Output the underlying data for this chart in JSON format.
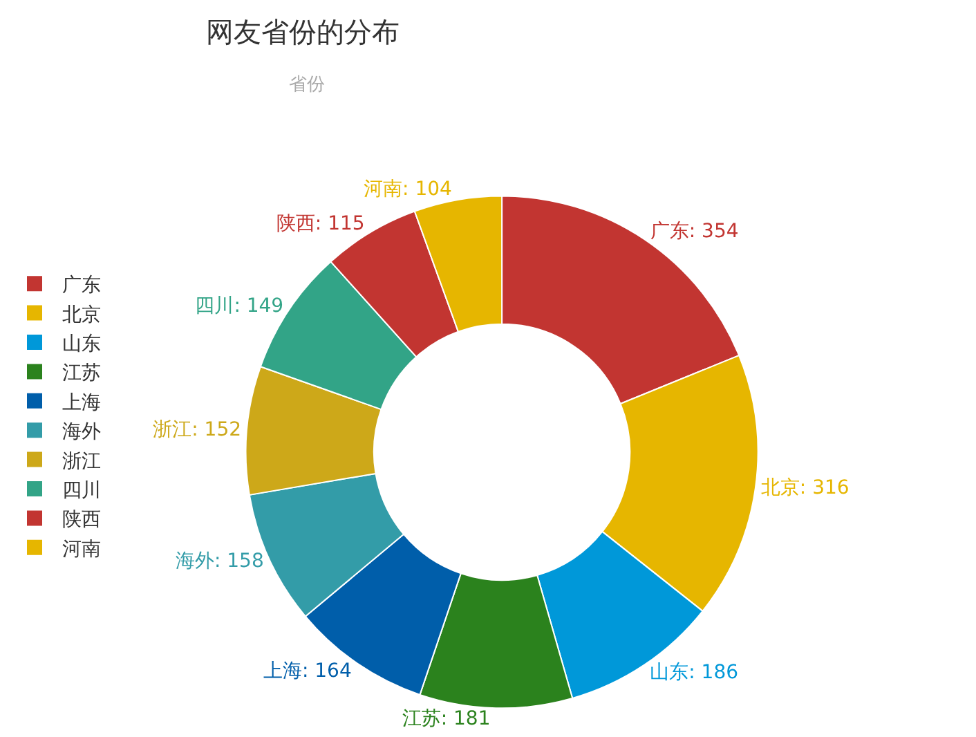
{
  "chart_data": {
    "type": "donut",
    "title": "网友省份的分布",
    "subtitle": "省份",
    "categories": [
      "广东",
      "北京",
      "山东",
      "江苏",
      "上海",
      "海外",
      "浙江",
      "四川",
      "陕西",
      "河南"
    ],
    "values": [
      354,
      316,
      186,
      181,
      164,
      158,
      152,
      149,
      115,
      104
    ],
    "colors": [
      "#c23531",
      "#e6b600",
      "#0098d9",
      "#2b821d",
      "#005eaa",
      "#339ca8",
      "#cda819",
      "#32a487",
      "#c23531",
      "#e6b600"
    ],
    "value_labels": [
      "广东: 354",
      "北京: 316",
      "山东: 186",
      "江苏: 181",
      "上海: 164",
      "海外: 158",
      "浙江: 152",
      "四川: 149",
      "陕西: 115",
      "河南: 104"
    ],
    "legend": "left"
  }
}
